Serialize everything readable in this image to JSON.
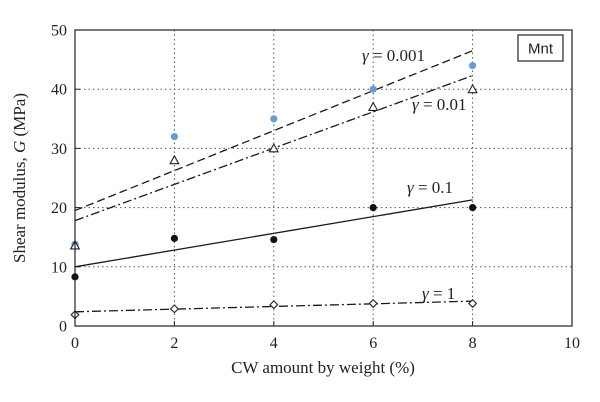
{
  "chart_data": {
    "type": "scatter",
    "title": "",
    "box_label": "Mnt",
    "xlabel": "CW amount by weight (%)",
    "ylabel_prefix": "Shear modulus, ",
    "ylabel_var": "G",
    "ylabel_suffix": " (MPa)",
    "xlim": [
      0,
      10
    ],
    "ylim": [
      0,
      50
    ],
    "x_ticks": [
      "0",
      "2",
      "4",
      "6",
      "8",
      "10"
    ],
    "y_ticks": [
      "0",
      "10",
      "20",
      "30",
      "40",
      "50"
    ],
    "grid": "dotted",
    "series": [
      {
        "name": "γ = 0.001",
        "label_symbol": "γ",
        "label_value": " = 0.001",
        "marker": "filled-circle",
        "color": "#6a9bd1",
        "points": [
          [
            0,
            13.8
          ],
          [
            2,
            32
          ],
          [
            4,
            35
          ],
          [
            6,
            40
          ],
          [
            8,
            44
          ]
        ],
        "fit": [
          [
            0,
            19.5
          ],
          [
            8,
            46.5
          ]
        ],
        "fit_style": "dashed"
      },
      {
        "name": "γ = 0.01",
        "label_symbol": "γ",
        "label_value": " = 0.01",
        "marker": "open-triangle",
        "color": "#222222",
        "points": [
          [
            0,
            13.6
          ],
          [
            2,
            28
          ],
          [
            4,
            30
          ],
          [
            6,
            37
          ],
          [
            8,
            40
          ]
        ],
        "fit": [
          [
            0,
            17.8
          ],
          [
            8,
            42.3
          ]
        ],
        "fit_style": "dash-dot"
      },
      {
        "name": "γ = 0.1",
        "label_symbol": "γ",
        "label_value": " = 0.1",
        "marker": "filled-circle",
        "color": "#111111",
        "points": [
          [
            0,
            8.3
          ],
          [
            2,
            14.8
          ],
          [
            4,
            14.6
          ],
          [
            6,
            20
          ],
          [
            8,
            20
          ]
        ],
        "fit": [
          [
            0,
            10
          ],
          [
            8,
            21.3
          ]
        ],
        "fit_style": "solid"
      },
      {
        "name": "γ = 1",
        "label_symbol": "γ",
        "label_value": " = 1",
        "marker": "open-diamond",
        "color": "#222222",
        "points": [
          [
            0,
            1.9
          ],
          [
            2,
            2.9
          ],
          [
            4,
            3.6
          ],
          [
            6,
            3.8
          ],
          [
            8,
            3.8
          ]
        ],
        "fit": [
          [
            0,
            2.4
          ],
          [
            8,
            4.2
          ]
        ],
        "fit_style": "dash-dot"
      }
    ]
  }
}
